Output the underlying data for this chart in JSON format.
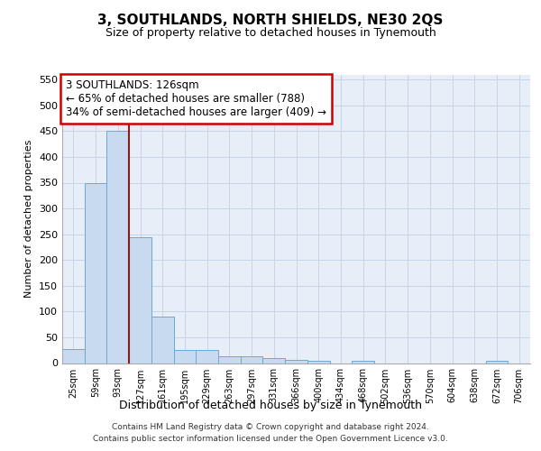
{
  "title": "3, SOUTHLANDS, NORTH SHIELDS, NE30 2QS",
  "subtitle": "Size of property relative to detached houses in Tynemouth",
  "xlabel": "Distribution of detached houses by size in Tynemouth",
  "ylabel": "Number of detached properties",
  "bar_labels": [
    "25sqm",
    "59sqm",
    "93sqm",
    "127sqm",
    "161sqm",
    "195sqm",
    "229sqm",
    "263sqm",
    "297sqm",
    "331sqm",
    "366sqm",
    "400sqm",
    "434sqm",
    "468sqm",
    "502sqm",
    "536sqm",
    "570sqm",
    "604sqm",
    "638sqm",
    "672sqm",
    "706sqm"
  ],
  "bar_values": [
    27,
    350,
    450,
    245,
    90,
    25,
    25,
    13,
    13,
    10,
    7,
    5,
    0,
    5,
    0,
    0,
    0,
    0,
    0,
    5,
    0
  ],
  "bar_color": "#c8daf0",
  "bar_edge_color": "#6aaad4",
  "vline_color": "#8b1a1a",
  "annotation_text": "3 SOUTHLANDS: 126sqm\n← 65% of detached houses are smaller (788)\n34% of semi-detached houses are larger (409) →",
  "annotation_box_color": "#ffffff",
  "annotation_box_edge": "#cc0000",
  "ylim": [
    0,
    560
  ],
  "yticks": [
    0,
    50,
    100,
    150,
    200,
    250,
    300,
    350,
    400,
    450,
    500,
    550
  ],
  "grid_color": "#c8d4e8",
  "bg_color": "#e8eef8",
  "footer_line1": "Contains HM Land Registry data © Crown copyright and database right 2024.",
  "footer_line2": "Contains public sector information licensed under the Open Government Licence v3.0."
}
